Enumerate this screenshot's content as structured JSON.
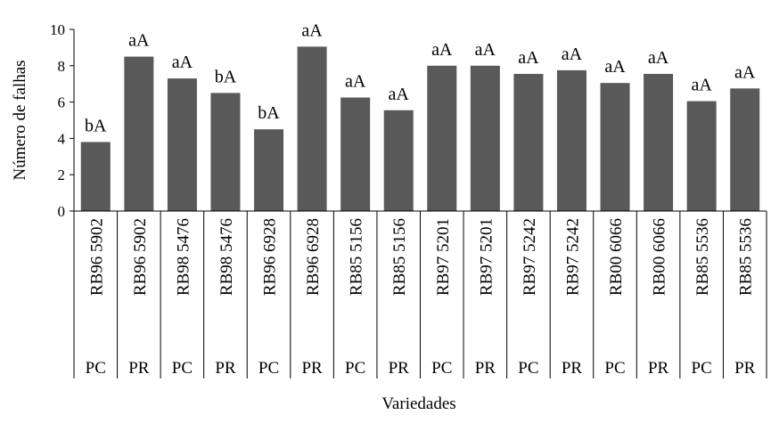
{
  "chart_data": {
    "type": "bar",
    "xlabel": "Variedades",
    "ylabel": "Número de falhas",
    "ylim": [
      0,
      10
    ],
    "yticks": [
      "0",
      "2",
      "4",
      "6",
      "8",
      "10"
    ],
    "grid": false,
    "bar_color": "#595959",
    "categories": [
      "RB96 5902",
      "RB96 5902",
      "RB98 5476",
      "RB98 5476",
      "RB96 6928",
      "RB96 6928",
      "RB85 5156",
      "RB85 5156",
      "RB97 5201",
      "RB97 5201",
      "RB97 5242",
      "RB97 5242",
      "RB00 6066",
      "RB00 6066",
      "RB85 5536",
      "RB85 5536"
    ],
    "groups": [
      "PC",
      "PR",
      "PC",
      "PR",
      "PC",
      "PR",
      "PC",
      "PR",
      "PC",
      "PR",
      "PC",
      "PR",
      "PC",
      "PR",
      "PC",
      "PR"
    ],
    "values": [
      3.8,
      8.5,
      7.3,
      6.5,
      4.5,
      9.05,
      6.25,
      5.55,
      8.0,
      8.0,
      7.55,
      7.75,
      7.05,
      7.55,
      6.05,
      6.75
    ],
    "data_labels": [
      "bA",
      "aA",
      "aA",
      "bA",
      "bA",
      "aA",
      "aA",
      "aA",
      "aA",
      "aA",
      "aA",
      "aA",
      "aA",
      "aA",
      "aA",
      "aA"
    ]
  }
}
